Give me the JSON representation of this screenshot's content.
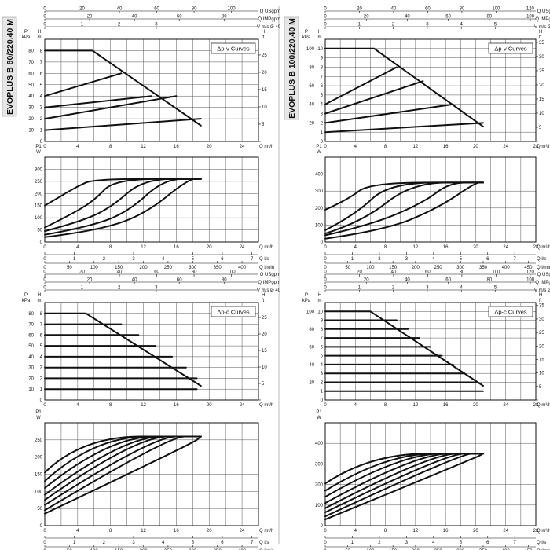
{
  "models": [
    {
      "id": "b80",
      "name": "EVOPLUS B 80/220.40 M"
    },
    {
      "id": "b100",
      "name": "EVOPLUS B 100/220.40 M"
    }
  ],
  "chart_data": [
    {
      "id": "b80_dpv",
      "type": "line",
      "title": "Δp-v Curves",
      "top_axes": [
        {
          "label": "Q USgpm",
          "max": 100,
          "ticks": [
            0,
            20,
            40,
            60,
            80,
            100
          ]
        },
        {
          "label": "Q IMPgpm",
          "max": 80,
          "ticks": [
            0,
            20,
            40,
            60,
            80
          ]
        },
        {
          "label": "V m/s Ø 40",
          "max": 4,
          "ticks": [
            0,
            1,
            2,
            3
          ]
        }
      ],
      "xlabel": "Q m³/h",
      "xlim": [
        0,
        26
      ],
      "xticks": [
        0,
        4,
        8,
        12,
        16,
        20,
        24
      ],
      "ylabel": "kPa",
      "ylabel2": "H m",
      "ylim": [
        0,
        9
      ],
      "yticks": [
        0,
        1,
        2,
        3,
        4,
        5,
        6,
        7,
        8
      ],
      "yticks_kpa": [
        0,
        10,
        20,
        30,
        40,
        50,
        60,
        70,
        80
      ],
      "ylabel_right": "H ft",
      "yticks_ft": [
        0,
        5,
        10,
        15,
        20,
        25
      ],
      "series": [
        {
          "x": [
            0,
            19
          ],
          "y": [
            1,
            2
          ]
        },
        {
          "x": [
            0,
            16
          ],
          "y": [
            2,
            4
          ]
        },
        {
          "x": [
            0,
            13
          ],
          "y": [
            3,
            4
          ]
        },
        {
          "x": [
            0,
            9.3
          ],
          "y": [
            4,
            6
          ]
        },
        {
          "x": [
            0,
            5.8,
            19
          ],
          "y": [
            8,
            8,
            1.4
          ]
        }
      ]
    },
    {
      "id": "b80_dpv_p1",
      "type": "line",
      "xlabel": "Q m³/h",
      "xlim": [
        0,
        26
      ],
      "xticks": [
        0,
        4,
        8,
        12,
        16,
        20,
        24
      ],
      "ylabel": "W",
      "ylabel_top": "P1",
      "ylim": [
        0,
        350
      ],
      "yticks": [
        0,
        50,
        100,
        150,
        200,
        250,
        300
      ],
      "bottom_axes": [
        {
          "label": "Q l/s",
          "ticks": [
            0,
            1,
            2,
            3,
            4,
            5,
            6,
            7
          ]
        },
        {
          "label": "Q l/min",
          "ticks": [
            0,
            50,
            100,
            150,
            200,
            250,
            300,
            350,
            400
          ]
        }
      ],
      "series": [
        {
          "x": [
            0,
            2,
            4,
            6,
            19
          ],
          "y": [
            150,
            190,
            230,
            260,
            260
          ]
        },
        {
          "x": [
            0,
            3,
            6,
            8.5,
            19
          ],
          "y": [
            60,
            110,
            170,
            260,
            260
          ]
        },
        {
          "x": [
            0,
            4,
            8,
            12,
            19
          ],
          "y": [
            45,
            80,
            140,
            260,
            260
          ]
        },
        {
          "x": [
            0,
            5,
            10,
            14.5,
            19
          ],
          "y": [
            30,
            60,
            120,
            260,
            260
          ]
        },
        {
          "x": [
            0,
            6,
            12,
            17.5,
            19
          ],
          "y": [
            20,
            45,
            110,
            260,
            260
          ]
        }
      ]
    },
    {
      "id": "b100_dpv",
      "type": "line",
      "title": "Δp-v Curves",
      "top_axes": [
        {
          "label": "Q USgpm",
          "max": 120,
          "ticks": [
            0,
            20,
            40,
            60,
            80,
            100,
            120
          ]
        },
        {
          "label": "Q IMPgpm",
          "max": 100,
          "ticks": [
            0,
            20,
            40,
            60,
            80,
            100
          ]
        },
        {
          "label": "V m/s Ø 40",
          "max": 6,
          "ticks": [
            0,
            1,
            2,
            3,
            4,
            5
          ]
        }
      ],
      "xlabel": "Q m³/h",
      "xlim": [
        0,
        28
      ],
      "xticks": [
        0,
        4,
        8,
        12,
        16,
        20,
        24,
        28
      ],
      "ylabel": "kPa",
      "ylabel2": "H m",
      "ylim": [
        0,
        11
      ],
      "yticks": [
        0,
        1,
        2,
        3,
        4,
        5,
        6,
        7,
        8,
        9,
        10
      ],
      "yticks_kpa": [
        0,
        20,
        40,
        60,
        80,
        100
      ],
      "ylabel_right": "H ft",
      "yticks_ft": [
        0,
        5,
        10,
        15,
        20,
        25,
        30,
        35
      ],
      "series": [
        {
          "x": [
            0,
            21
          ],
          "y": [
            1,
            2
          ]
        },
        {
          "x": [
            0,
            17
          ],
          "y": [
            2,
            4
          ]
        },
        {
          "x": [
            0,
            13
          ],
          "y": [
            3,
            6.5
          ]
        },
        {
          "x": [
            0,
            9.5
          ],
          "y": [
            4,
            8
          ]
        },
        {
          "x": [
            0,
            6.5,
            21
          ],
          "y": [
            10,
            10,
            1.6
          ]
        }
      ]
    },
    {
      "id": "b100_dpv_p1",
      "type": "line",
      "xlabel": "Q m³/h",
      "xlim": [
        0,
        28
      ],
      "xticks": [
        0,
        4,
        8,
        12,
        16,
        20,
        24,
        28
      ],
      "ylabel": "W",
      "ylabel_top": "P1",
      "ylim": [
        0,
        500
      ],
      "yticks": [
        0,
        100,
        200,
        300,
        400
      ],
      "bottom_axes": [
        {
          "label": "Q l/s",
          "ticks": [
            0,
            1,
            2,
            3,
            4,
            5,
            6,
            7
          ]
        },
        {
          "label": "Q l/min",
          "ticks": [
            0,
            50,
            100,
            150,
            200,
            250,
            300,
            350,
            400,
            450
          ]
        }
      ],
      "series": [
        {
          "x": [
            0,
            3,
            6,
            21
          ],
          "y": [
            190,
            250,
            350,
            350
          ]
        },
        {
          "x": [
            0,
            4,
            8.5,
            21
          ],
          "y": [
            70,
            160,
            350,
            350
          ]
        },
        {
          "x": [
            0,
            5,
            11.5,
            21
          ],
          "y": [
            50,
            120,
            350,
            350
          ]
        },
        {
          "x": [
            0,
            6,
            13,
            16.5,
            21
          ],
          "y": [
            40,
            100,
            230,
            350,
            350
          ]
        },
        {
          "x": [
            0,
            8,
            15,
            20,
            21
          ],
          "y": [
            20,
            70,
            200,
            350,
            350
          ]
        }
      ]
    },
    {
      "id": "b80_dpc",
      "type": "line",
      "title": "Δp-c Curves",
      "top_axes": [
        {
          "label": "Q USgpm",
          "max": 100,
          "ticks": [
            0,
            20,
            40,
            60,
            80,
            100
          ]
        },
        {
          "label": "Q IMPgpm",
          "max": 80,
          "ticks": [
            0,
            20,
            40,
            60,
            80
          ]
        },
        {
          "label": "V m/s Ø 40",
          "max": 4,
          "ticks": [
            0,
            1,
            2,
            3
          ]
        }
      ],
      "xlabel": "Q m³/h",
      "xlim": [
        0,
        26
      ],
      "xticks": [
        0,
        4,
        8,
        12,
        16,
        20,
        24
      ],
      "ylabel": "kPa",
      "ylabel2": "H m",
      "ylim": [
        0,
        9
      ],
      "yticks": [
        0,
        1,
        2,
        3,
        4,
        5,
        6,
        7,
        8
      ],
      "yticks_kpa": [
        0,
        10,
        20,
        30,
        40,
        50,
        60,
        70,
        80
      ],
      "ylabel_right": "H ft",
      "yticks_ft": [
        0,
        5,
        10,
        15,
        20,
        25
      ],
      "series": [
        {
          "x": [
            0,
            5,
            19
          ],
          "y": [
            8,
            8,
            1.3
          ]
        },
        {
          "x": [
            0,
            9.3
          ],
          "y": [
            7,
            7
          ]
        },
        {
          "x": [
            0,
            11.4
          ],
          "y": [
            6,
            6
          ]
        },
        {
          "x": [
            0,
            13.5
          ],
          "y": [
            5,
            5
          ]
        },
        {
          "x": [
            0,
            15.5
          ],
          "y": [
            4,
            4
          ]
        },
        {
          "x": [
            0,
            17.2
          ],
          "y": [
            3,
            3
          ]
        },
        {
          "x": [
            0,
            18.5
          ],
          "y": [
            2,
            2
          ]
        },
        {
          "x": [
            0,
            18.5
          ],
          "y": [
            1,
            1
          ]
        }
      ]
    },
    {
      "id": "b80_dpc_p1",
      "type": "line",
      "xlabel": "Q m³/h",
      "xlim": [
        0,
        26
      ],
      "xticks": [
        0,
        4,
        8,
        12,
        16,
        20,
        24
      ],
      "ylabel": "W",
      "ylabel_top": "P1",
      "ylim": [
        0,
        300
      ],
      "yticks": [
        0,
        50,
        100,
        150,
        200,
        250
      ],
      "bottom_axes": [
        {
          "label": "Q l/s",
          "ticks": [
            0,
            1,
            2,
            3,
            4,
            5,
            6,
            7
          ]
        },
        {
          "label": "Q l/min",
          "ticks": [
            0,
            50,
            100,
            150,
            200,
            250,
            300,
            350,
            400
          ]
        }
      ],
      "series": [
        {
          "x": [
            0,
            4.5,
            19
          ],
          "y": [
            155,
            260,
            260
          ]
        },
        {
          "x": [
            0,
            6,
            19
          ],
          "y": [
            130,
            260,
            260
          ]
        },
        {
          "x": [
            0,
            7.8,
            19
          ],
          "y": [
            110,
            260,
            260
          ]
        },
        {
          "x": [
            0,
            9.5,
            19
          ],
          "y": [
            90,
            260,
            260
          ]
        },
        {
          "x": [
            0,
            11,
            19
          ],
          "y": [
            75,
            260,
            260
          ]
        },
        {
          "x": [
            0,
            13,
            19
          ],
          "y": [
            60,
            260,
            260
          ]
        },
        {
          "x": [
            0,
            15,
            19
          ],
          "y": [
            45,
            260,
            260
          ]
        },
        {
          "x": [
            0,
            18,
            19
          ],
          "y": [
            35,
            240,
            260
          ]
        }
      ]
    },
    {
      "id": "b100_dpc",
      "type": "line",
      "title": "Δp-c Curves",
      "top_axes": [
        {
          "label": "Q USgpm",
          "max": 120,
          "ticks": [
            0,
            20,
            40,
            60,
            80,
            100,
            120
          ]
        },
        {
          "label": "Q IMPgpm",
          "max": 100,
          "ticks": [
            0,
            20,
            40,
            60,
            80,
            100
          ]
        },
        {
          "label": "V m/s Ø 40",
          "max": 6,
          "ticks": [
            0,
            1,
            2,
            3,
            4,
            5
          ]
        }
      ],
      "xlabel": "Q m³/h",
      "xlim": [
        0,
        28
      ],
      "xticks": [
        0,
        4,
        8,
        12,
        16,
        20,
        24,
        28
      ],
      "ylabel": "kPa",
      "ylabel2": "H m",
      "ylim": [
        0,
        11
      ],
      "yticks": [
        0,
        1,
        2,
        3,
        4,
        5,
        6,
        7,
        8,
        9,
        10
      ],
      "yticks_kpa": [
        0,
        20,
        40,
        60,
        80,
        100
      ],
      "ylabel_right": "H ft",
      "yticks_ft": [
        0,
        5,
        10,
        15,
        20,
        25,
        30,
        35
      ],
      "series": [
        {
          "x": [
            0,
            6,
            21
          ],
          "y": [
            10,
            10,
            1.6
          ]
        },
        {
          "x": [
            0,
            9.5
          ],
          "y": [
            9,
            9
          ]
        },
        {
          "x": [
            0,
            11
          ],
          "y": [
            8,
            8
          ]
        },
        {
          "x": [
            0,
            12.5
          ],
          "y": [
            7,
            7
          ]
        },
        {
          "x": [
            0,
            14
          ],
          "y": [
            6,
            6
          ]
        },
        {
          "x": [
            0,
            15.5
          ],
          "y": [
            5,
            5
          ]
        },
        {
          "x": [
            0,
            17
          ],
          "y": [
            4,
            4
          ]
        },
        {
          "x": [
            0,
            18.5
          ],
          "y": [
            3,
            3
          ]
        },
        {
          "x": [
            0,
            20
          ],
          "y": [
            2,
            2
          ]
        },
        {
          "x": [
            0,
            21
          ],
          "y": [
            1,
            1
          ]
        }
      ]
    },
    {
      "id": "b100_dpc_p1",
      "type": "line",
      "xlabel": "Q m³/h",
      "xlim": [
        0,
        28
      ],
      "xticks": [
        0,
        4,
        8,
        12,
        16,
        20,
        24,
        28
      ],
      "ylabel": "W",
      "ylabel_top": "P1",
      "ylim": [
        0,
        500
      ],
      "yticks": [
        0,
        100,
        200,
        300,
        400
      ],
      "bottom_axes": [
        {
          "label": "Q l/s",
          "ticks": [
            0,
            1,
            2,
            3,
            4,
            5,
            6,
            7
          ]
        },
        {
          "label": "Q l/min",
          "ticks": [
            0,
            50,
            100,
            150,
            200,
            250,
            300,
            350,
            400,
            450
          ]
        }
      ],
      "series": [
        {
          "x": [
            0,
            6,
            21
          ],
          "y": [
            205,
            350,
            350
          ]
        },
        {
          "x": [
            0,
            8,
            21
          ],
          "y": [
            170,
            350,
            350
          ]
        },
        {
          "x": [
            0,
            10,
            21
          ],
          "y": [
            140,
            350,
            350
          ]
        },
        {
          "x": [
            0,
            12,
            21
          ],
          "y": [
            110,
            350,
            350
          ]
        },
        {
          "x": [
            0,
            14,
            21
          ],
          "y": [
            85,
            350,
            350
          ]
        },
        {
          "x": [
            0,
            16,
            21
          ],
          "y": [
            65,
            350,
            350
          ]
        },
        {
          "x": [
            0,
            18,
            21
          ],
          "y": [
            45,
            350,
            350
          ]
        },
        {
          "x": [
            0,
            20,
            21
          ],
          "y": [
            30,
            330,
            350
          ]
        }
      ]
    }
  ]
}
